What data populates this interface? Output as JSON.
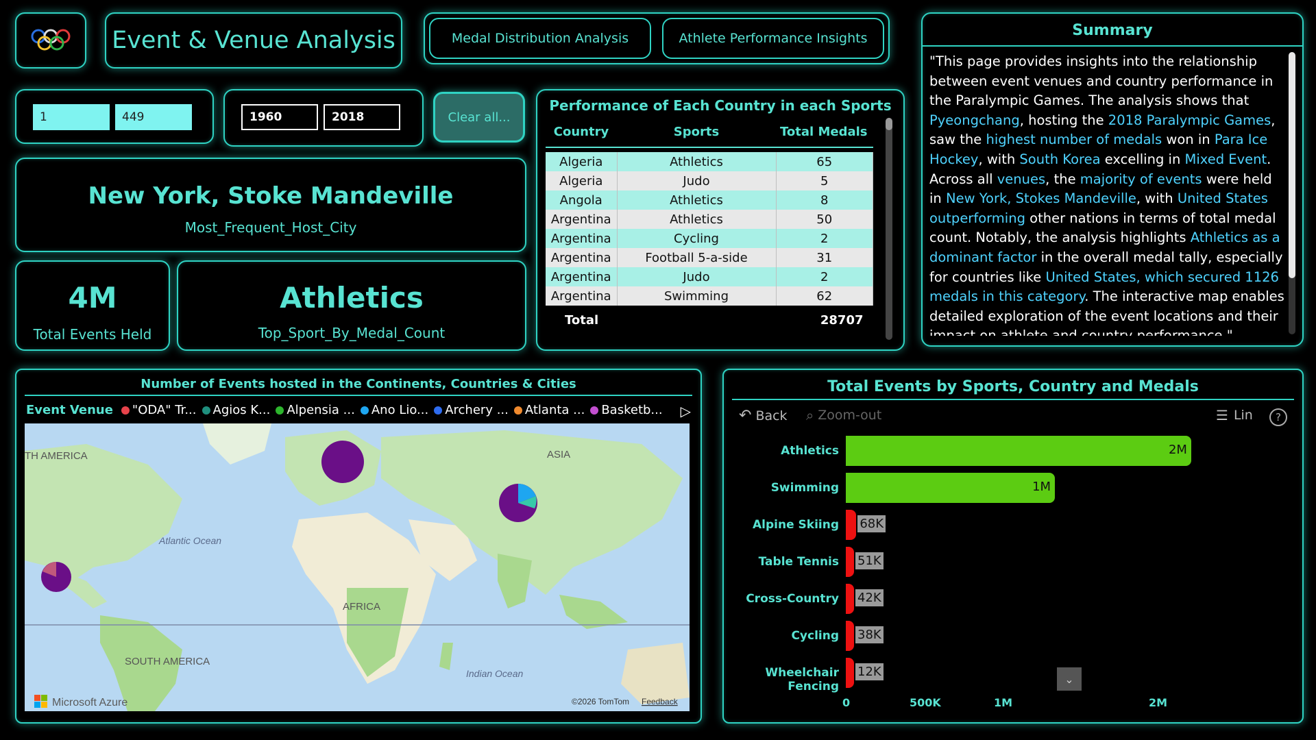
{
  "header": {
    "title": "Event & Venue Analysis",
    "nav": [
      "Medal Distribution Analysis",
      "Athlete Performance Insights"
    ]
  },
  "slicers": {
    "event_min": "1",
    "event_max": "449",
    "year_min": "1960",
    "year_max": "2018",
    "clear_label": "Clear all..."
  },
  "cards": {
    "host_city": {
      "value": "New York, Stoke Mandeville",
      "label": "Most_Frequent_Host_City"
    },
    "total_events": {
      "value": "4M",
      "label": "Total Events Held"
    },
    "top_sport": {
      "value": "Athletics",
      "label": "Top_Sport_By_Medal_Count"
    }
  },
  "table": {
    "title": "Performance of Each Country in each Sports",
    "columns": [
      "Country",
      "Sports",
      "Total Medals"
    ],
    "rows": [
      [
        "Algeria",
        "Athletics",
        "65"
      ],
      [
        "Algeria",
        "Judo",
        "5"
      ],
      [
        "Angola",
        "Athletics",
        "8"
      ],
      [
        "Argentina",
        "Athletics",
        "50"
      ],
      [
        "Argentina",
        "Cycling",
        "2"
      ],
      [
        "Argentina",
        "Football 5-a-side",
        "31"
      ],
      [
        "Argentina",
        "Judo",
        "2"
      ],
      [
        "Argentina",
        "Swimming",
        "62"
      ]
    ],
    "total_label": "Total",
    "total_value": "28707"
  },
  "summary": {
    "title": "Summary",
    "segments": [
      {
        "t": "\"This page provides insights into the relationship between event venues and country performance in the Paralympic Games. The analysis shows that ",
        "hl": false
      },
      {
        "t": "Pyeongchang",
        "hl": true
      },
      {
        "t": ", hosting the ",
        "hl": false
      },
      {
        "t": "2018 Paralympic Games",
        "hl": true
      },
      {
        "t": ", saw the ",
        "hl": false
      },
      {
        "t": "highest number of medals",
        "hl": true
      },
      {
        "t": " won in ",
        "hl": false
      },
      {
        "t": "Para Ice Hockey",
        "hl": true
      },
      {
        "t": ", with ",
        "hl": false
      },
      {
        "t": "South Korea",
        "hl": true
      },
      {
        "t": " excelling in ",
        "hl": false
      },
      {
        "t": "Mixed Event",
        "hl": true
      },
      {
        "t": ". Across all ",
        "hl": false
      },
      {
        "t": "venues",
        "hl": true
      },
      {
        "t": ", the  ",
        "hl": false
      },
      {
        "t": "majority of events",
        "hl": true
      },
      {
        "t": " were held in ",
        "hl": false
      },
      {
        "t": "New York, Stokes Mandeville",
        "hl": true
      },
      {
        "t": ", with ",
        "hl": false
      },
      {
        "t": "United States outperforming",
        "hl": true
      },
      {
        "t": " other nations in terms of total medal count. Notably, the analysis highlights ",
        "hl": false
      },
      {
        "t": "Athletics as a dominant factor",
        "hl": true
      },
      {
        "t": " in the overall medal tally, especially for countries like ",
        "hl": false
      },
      {
        "t": "United States, which secured 1126 medals in this category",
        "hl": true
      },
      {
        "t": ". The interactive map enables detailed exploration of the event locations and their impact on athlete and country performance.\"",
        "hl": false
      }
    ]
  },
  "map": {
    "title": "Number of Events hosted in the Continents, Countries & Cities",
    "legend_title": "Event Venue",
    "legend": [
      {
        "label": "\"ODA\" Tr...",
        "color": "#e8434b"
      },
      {
        "label": "Agios K...",
        "color": "#1f8f7e"
      },
      {
        "label": "Alpensia ...",
        "color": "#2db52d"
      },
      {
        "label": "Ano Lio...",
        "color": "#1ea6f0"
      },
      {
        "label": "Archery ...",
        "color": "#2e6cf0"
      },
      {
        "label": "Atlanta ...",
        "color": "#f08a2e"
      },
      {
        "label": "Basketb...",
        "color": "#c34fd0"
      }
    ],
    "labels": [
      "TH AMERICA",
      "ASIA",
      "Atlantic Ocean",
      "AFRICA",
      "SOUTH AMERICA",
      "Indian Ocean"
    ],
    "brand": "Microsoft Azure",
    "credit": "©2026 TomTom",
    "feedback": "Feedback"
  },
  "bar_chart_ui": {
    "title": "Total Events by Sports, Country and Medals",
    "back": "Back",
    "zoom_out": "Zoom-out",
    "lin": "Lin",
    "help": "?"
  },
  "chart_data": {
    "type": "bar",
    "orientation": "horizontal",
    "title": "Total Events by Sports, Country and Medals",
    "categories": [
      "Athletics",
      "Swimming",
      "Alpine Skiing",
      "Table Tennis",
      "Cross-Country",
      "Cycling",
      "Wheelchair Fencing"
    ],
    "values": [
      2230000,
      1350000,
      68000,
      51000,
      42000,
      38000,
      12000
    ],
    "data_labels": [
      "2M",
      "1M",
      "68K",
      "51K",
      "42K",
      "38K",
      "12K"
    ],
    "colors": [
      "#5ccc12",
      "#5ccc12",
      "#ee1111",
      "#ee1111",
      "#ee1111",
      "#ee1111",
      "#ee1111"
    ],
    "xlim": [
      0,
      2500000
    ],
    "xticks": [
      {
        "v": 0,
        "label": "0"
      },
      {
        "v": 500000,
        "label": "500K"
      },
      {
        "v": 1000000,
        "label": "1M"
      },
      {
        "v": 2000000,
        "label": "2M"
      }
    ],
    "grid": false
  }
}
